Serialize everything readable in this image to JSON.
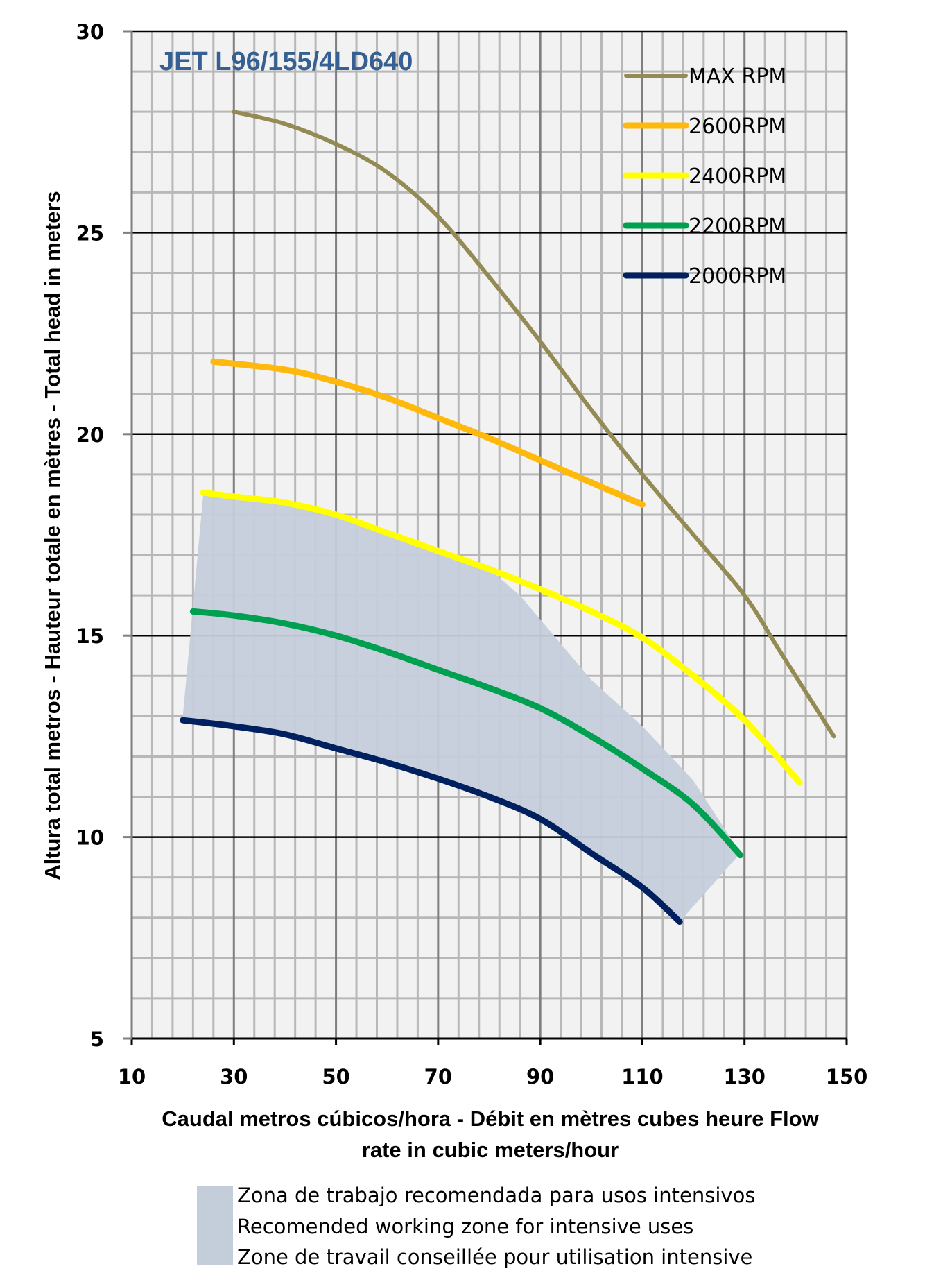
{
  "chart_data": {
    "type": "line",
    "title": "JET L96/155/4LD640",
    "xlabel_lines": [
      "Caudal metros cúbicos/hora - Débit en mètres cubes heure  Flow",
      "rate in cubic meters/hour"
    ],
    "ylabel": "Altura total metros - Hauteur totale en mètres - Total head in meters",
    "xlim": [
      10,
      150
    ],
    "ylim": [
      5,
      30
    ],
    "x_ticks": [
      "10",
      "30",
      "50",
      "70",
      "90",
      "110",
      "130",
      "150"
    ],
    "y_ticks": [
      "5",
      "10",
      "15",
      "20",
      "25",
      "30"
    ],
    "grid": true,
    "legend_position": "top-right",
    "series": [
      {
        "name": "MAX RPM",
        "color": "#948a54",
        "width": "thin",
        "points": [
          [
            30,
            28.0
          ],
          [
            40,
            27.7
          ],
          [
            50,
            27.2
          ],
          [
            60,
            26.5
          ],
          [
            70,
            25.4
          ],
          [
            80,
            23.9
          ],
          [
            90,
            22.3
          ],
          [
            100,
            20.6
          ],
          [
            110,
            19.0
          ],
          [
            120,
            17.5
          ],
          [
            130,
            16.0
          ],
          [
            137,
            14.6
          ],
          [
            147.5,
            12.5
          ]
        ]
      },
      {
        "name": "2600RPM",
        "color": "#ffb80c",
        "width": "thick",
        "points": [
          [
            26,
            21.8
          ],
          [
            40,
            21.6
          ],
          [
            50,
            21.3
          ],
          [
            60,
            20.9
          ],
          [
            70,
            20.4
          ],
          [
            80,
            19.9
          ],
          [
            90,
            19.35
          ],
          [
            100,
            18.8
          ],
          [
            110,
            18.25
          ]
        ]
      },
      {
        "name": "2400RPM",
        "color": "#ffff00",
        "width": "thick",
        "points": [
          [
            24,
            18.55
          ],
          [
            30,
            18.45
          ],
          [
            40,
            18.3
          ],
          [
            50,
            18.0
          ],
          [
            60,
            17.55
          ],
          [
            70,
            17.1
          ],
          [
            80,
            16.65
          ],
          [
            90,
            16.15
          ],
          [
            100,
            15.6
          ],
          [
            110,
            14.95
          ],
          [
            120,
            14.0
          ],
          [
            130,
            12.9
          ],
          [
            140.8,
            11.35
          ]
        ]
      },
      {
        "name": "2200RPM",
        "color": "#00a050",
        "width": "thick",
        "points": [
          [
            22,
            15.6
          ],
          [
            30,
            15.5
          ],
          [
            40,
            15.3
          ],
          [
            50,
            15.0
          ],
          [
            60,
            14.6
          ],
          [
            70,
            14.15
          ],
          [
            80,
            13.7
          ],
          [
            90,
            13.2
          ],
          [
            100,
            12.5
          ],
          [
            110,
            11.7
          ],
          [
            120,
            10.8
          ],
          [
            129.2,
            9.55
          ]
        ]
      },
      {
        "name": "2000RPM",
        "color": "#002060",
        "width": "thick",
        "points": [
          [
            20,
            12.9
          ],
          [
            30,
            12.75
          ],
          [
            40,
            12.55
          ],
          [
            50,
            12.2
          ],
          [
            60,
            11.85
          ],
          [
            70,
            11.45
          ],
          [
            80,
            11.0
          ],
          [
            90,
            10.45
          ],
          [
            100,
            9.6
          ],
          [
            110,
            8.75
          ],
          [
            117.3,
            7.9
          ]
        ]
      }
    ],
    "zone": {
      "color": "#c4ceda",
      "labels": [
        "Zona de trabajo recomendada para usos intensivos",
        "Recomended working zone for intensive uses",
        "Zone de travail conseillée pour utilisation intensive"
      ],
      "polygon": [
        [
          20,
          13.0
        ],
        [
          24,
          18.5
        ],
        [
          30,
          18.45
        ],
        [
          40,
          18.3
        ],
        [
          50,
          18.0
        ],
        [
          60,
          17.55
        ],
        [
          70,
          17.1
        ],
        [
          80,
          16.65
        ],
        [
          86,
          16.0
        ],
        [
          100,
          13.9
        ],
        [
          110,
          12.75
        ],
        [
          120,
          11.4
        ],
        [
          129.2,
          9.6
        ],
        [
          117.3,
          7.9
        ],
        [
          110,
          8.75
        ],
        [
          100,
          9.6
        ],
        [
          90,
          10.45
        ],
        [
          80,
          11.0
        ],
        [
          70,
          11.45
        ],
        [
          60,
          11.85
        ],
        [
          50,
          12.2
        ],
        [
          40,
          12.55
        ],
        [
          30,
          12.75
        ],
        [
          20,
          12.9
        ]
      ]
    },
    "title_color": "#376092"
  }
}
